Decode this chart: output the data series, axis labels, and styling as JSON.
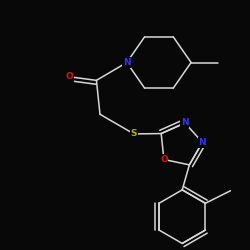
{
  "background": "#080808",
  "bond_color": "#d8d8d8",
  "atom_colors": {
    "N": "#3333ff",
    "O": "#dd1111",
    "S": "#bbaa00",
    "C": "#d8d8d8"
  },
  "lw": 1.1,
  "font_size_atom": 6.5
}
